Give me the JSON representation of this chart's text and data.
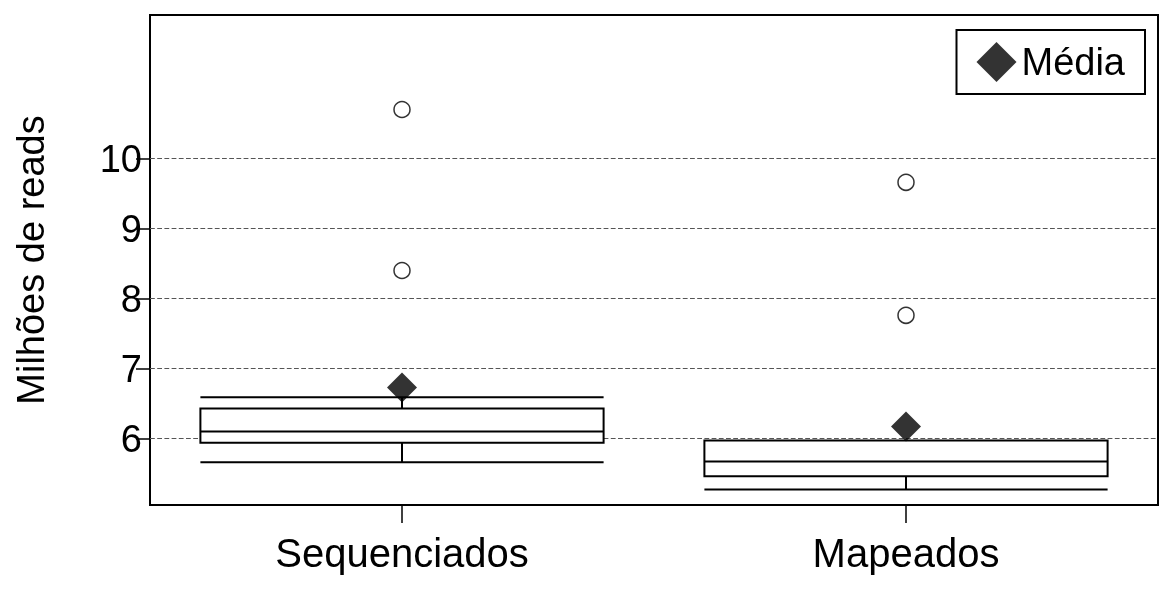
{
  "chart_data": {
    "type": "box",
    "ylabel": "Milhões de reads",
    "categories": [
      "Sequenciados",
      "Mapeados"
    ],
    "boxes": [
      {
        "low": 5.66,
        "q1": 5.94,
        "median": 6.1,
        "q3": 6.43,
        "high": 6.59,
        "outliers": [
          8.4,
          10.7
        ]
      },
      {
        "low": 5.27,
        "q1": 5.46,
        "median": 5.67,
        "q3": 5.97,
        "high": 5.97,
        "outliers": [
          7.76,
          9.66
        ]
      }
    ],
    "series": [
      {
        "name": "Média",
        "type": "scatter",
        "x": [
          "Sequenciados",
          "Mapeados"
        ],
        "values": [
          6.73,
          6.17
        ],
        "color": "#000000",
        "marker": "diamond"
      }
    ],
    "ylim": [
      5.05,
      12.05
    ],
    "yticks": [
      6,
      7,
      8,
      9,
      10
    ],
    "grid": "y",
    "legend": "top right"
  }
}
